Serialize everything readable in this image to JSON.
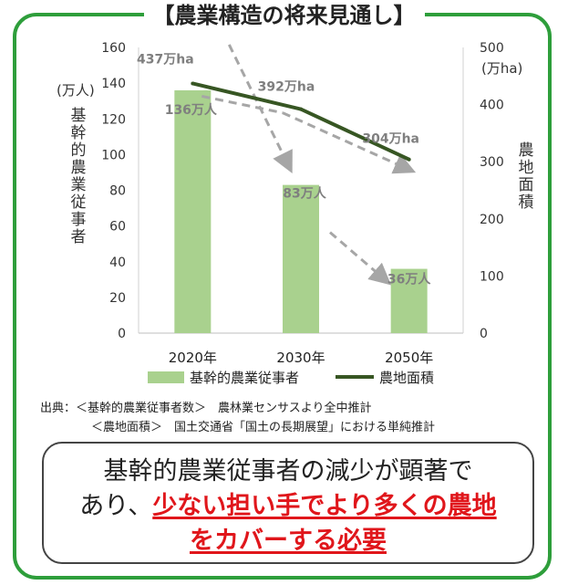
{
  "header": {
    "title": "【農業構造の将来見通し】"
  },
  "chart_data": {
    "type": "bar+line",
    "categories": [
      "2020年",
      "2030年",
      "2050年"
    ],
    "series": [
      {
        "name": "基幹的農業従事者",
        "type": "bar",
        "axis": "left",
        "color": "#a9d18e",
        "values": [
          136,
          83,
          36
        ],
        "labels": [
          "136万人",
          "83万人",
          "36万人"
        ]
      },
      {
        "name": "農地面積",
        "type": "line",
        "axis": "right",
        "color": "#375623",
        "values": [
          437,
          392,
          304
        ],
        "labels": [
          "437万ha",
          "392万ha",
          "304万ha"
        ]
      }
    ],
    "trend_arrows_color": "#a6a6a6",
    "left_axis": {
      "label": "基幹的農業従事者",
      "unit": "(万人)",
      "range": [
        0,
        160
      ],
      "ticks": [
        "0",
        "20",
        "40",
        "60",
        "80",
        "100",
        "120",
        "140",
        "160"
      ]
    },
    "right_axis": {
      "label": "農地面積",
      "unit": "(万ha)",
      "range": [
        0,
        500
      ],
      "ticks": [
        "0",
        "100",
        "200",
        "300",
        "400",
        "500"
      ]
    },
    "legend": {
      "placement": "bottom"
    }
  },
  "source": {
    "line1": "出典：＜基幹的農業従事者数＞　農林業センサスより全中推計",
    "line2": "＜農地面積＞　国土交通省「国土の長期展望」における単純推計"
  },
  "summary": {
    "line1": "基幹的農業従事者の減少が顕著で",
    "line2_prefix": "あり、",
    "line2_red": "少ない担い手でより多くの農地",
    "line3_red": "をカバーする必要"
  }
}
